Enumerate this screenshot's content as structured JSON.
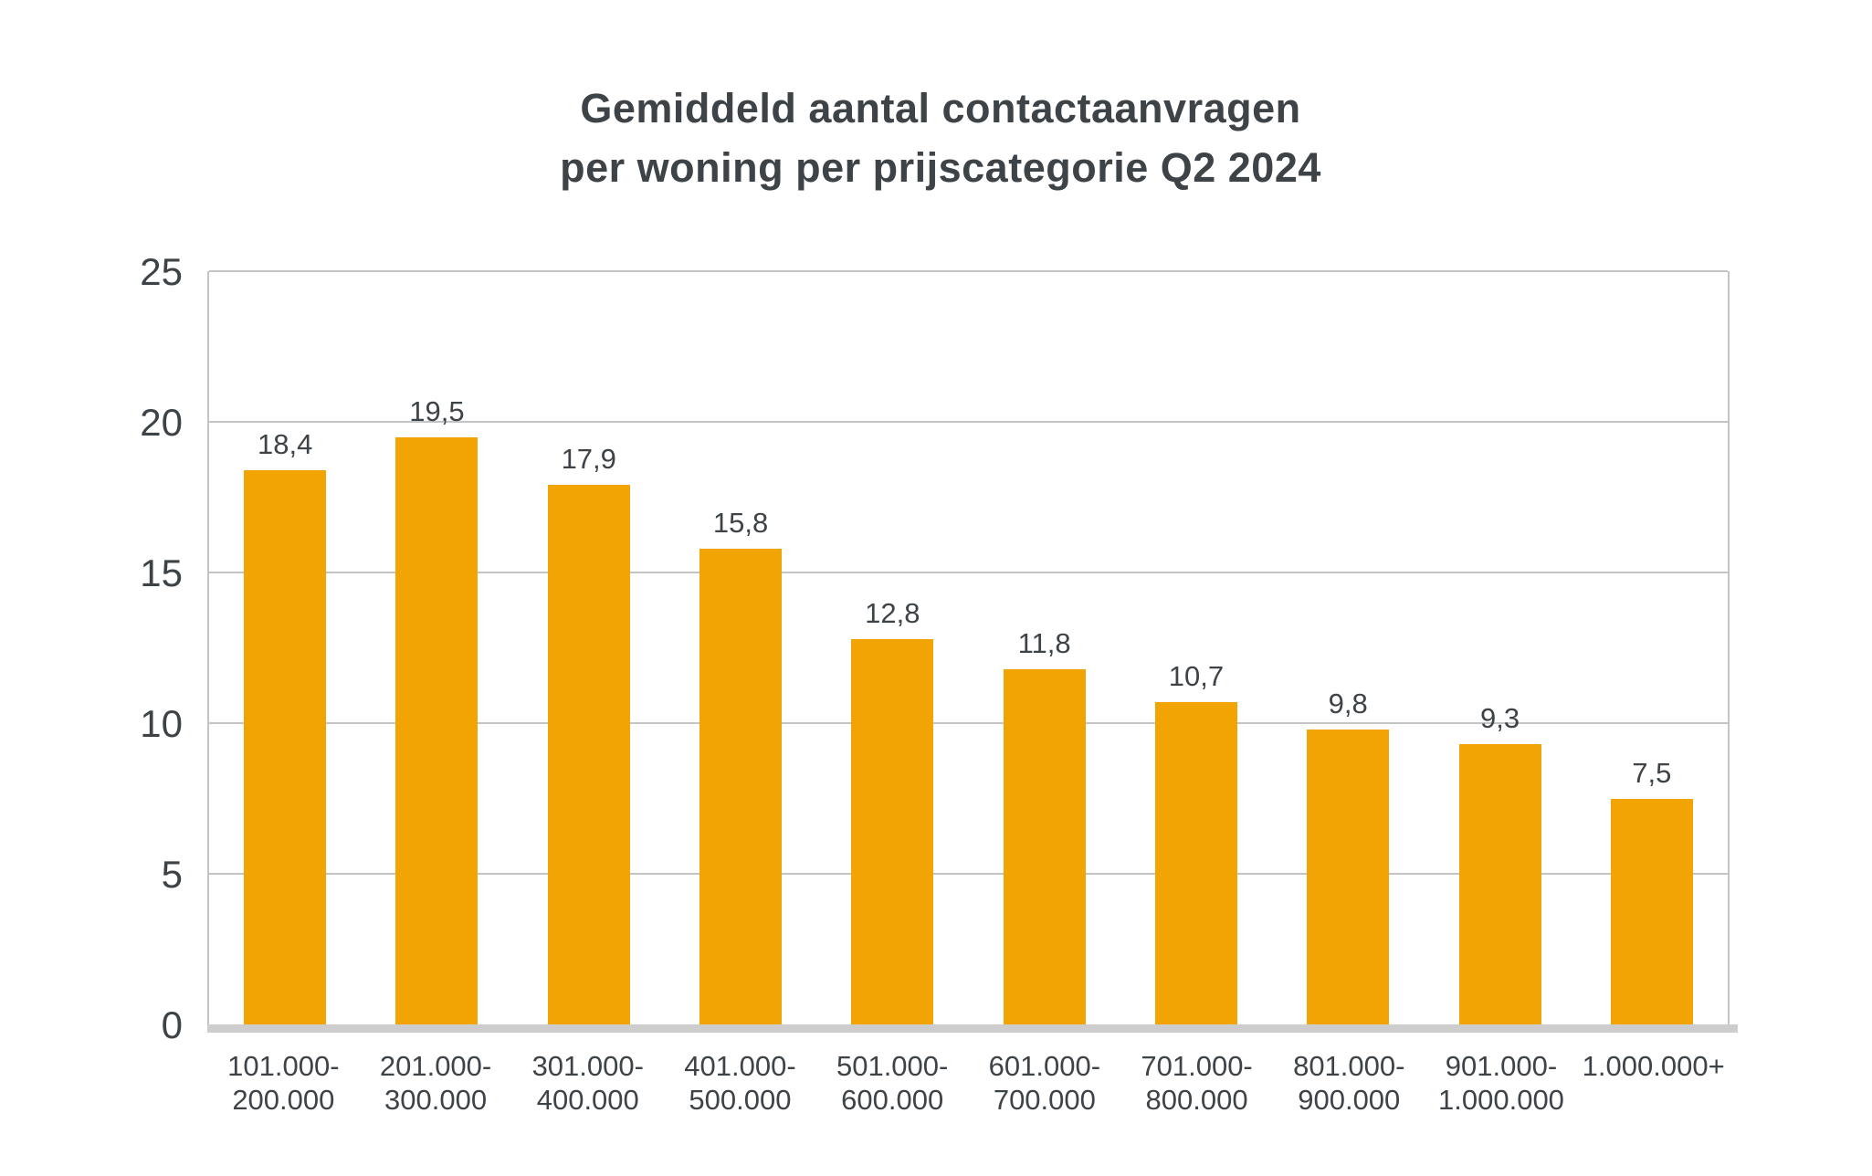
{
  "title": {
    "line1": "Gemiddeld aantal contactaanvragen",
    "line2": "per woning per prijscategorie Q2 2024"
  },
  "chart_data": {
    "type": "bar",
    "title": "Gemiddeld aantal contactaanvragen per woning per prijscategorie Q2 2024",
    "categories": [
      "101.000-\n200.000",
      "201.000-\n300.000",
      "301.000-\n400.000",
      "401.000-\n500.000",
      "501.000-\n600.000",
      "601.000-\n700.000",
      "701.000-\n800.000",
      "801.000-\n900.000",
      "901.000-\n1.000.000",
      "1.000.000+"
    ],
    "values": [
      18.4,
      19.5,
      17.9,
      15.8,
      12.8,
      11.8,
      10.7,
      9.8,
      9.3,
      7.5
    ],
    "value_labels": [
      "18,4",
      "19,5",
      "17,9",
      "15,8",
      "12,8",
      "11,8",
      "10,7",
      "9,8",
      "9,3",
      "7,5"
    ],
    "xlabel": "",
    "ylabel": "",
    "ylim": [
      0,
      25
    ],
    "yticks": [
      0,
      5,
      10,
      15,
      20,
      25
    ],
    "grid": true,
    "legend": false,
    "bar_color": "#F3A405",
    "grid_color": "#C4C4C4",
    "axis_line_color": "#CDCDCD",
    "text_color": "#3E4347"
  }
}
